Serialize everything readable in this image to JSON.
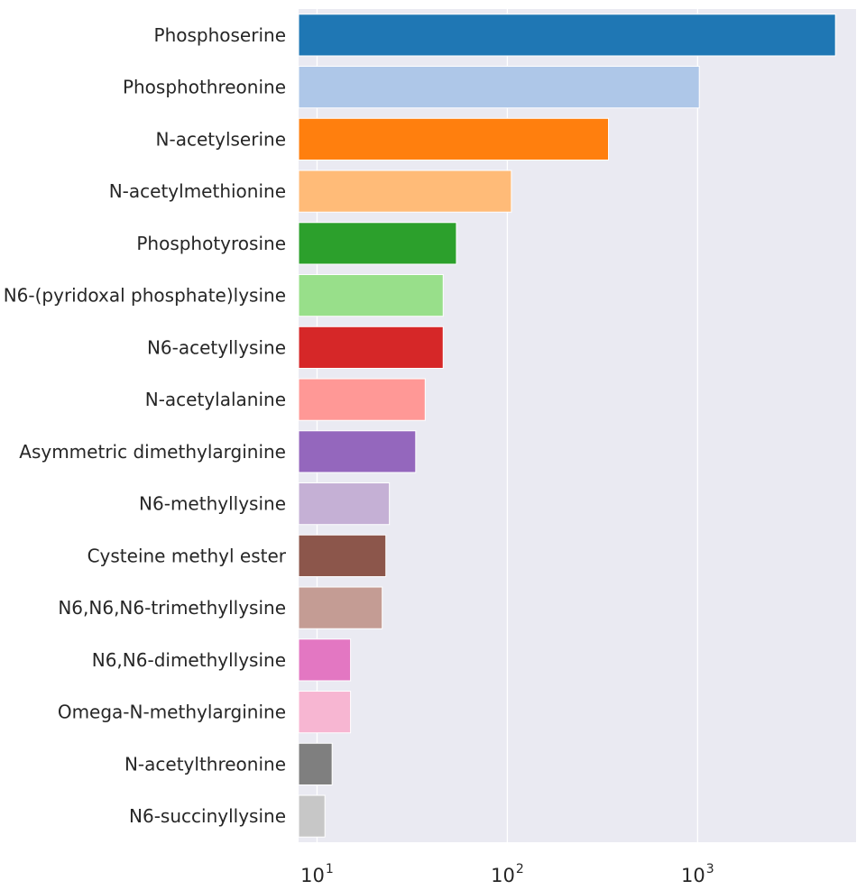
{
  "chart_data": {
    "type": "bar",
    "orientation": "horizontal",
    "title": "",
    "xlabel": "",
    "ylabel": "",
    "x_scale": "log",
    "xlim": [
      8,
      6800
    ],
    "grid": true,
    "background": "#eaeaf2",
    "categories": [
      "Phosphoserine",
      "Phosphothreonine",
      "N-acetylserine",
      "N-acetylmethionine",
      "Phosphotyrosine",
      "N6-(pyridoxal phosphate)lysine",
      "N6-acetyllysine",
      "N-acetylalanine",
      "Asymmetric dimethylarginine",
      "N6-methyllysine",
      "Cysteine methyl ester",
      "N6,N6,N6-trimethyllysine",
      "N6,N6-dimethyllysine",
      "Omega-N-methylarginine",
      "N-acetylthreonine",
      "N6-succinyllysine"
    ],
    "values": [
      5300,
      1020,
      340,
      105,
      54,
      46,
      46,
      37,
      33,
      24,
      23,
      22,
      15,
      15,
      12,
      11
    ],
    "colors": [
      "#1f77b4",
      "#aec7e8",
      "#ff7f0e",
      "#ffbb78",
      "#2ca02c",
      "#98df8a",
      "#d62728",
      "#ff9896",
      "#9467bd",
      "#c5b0d5",
      "#8c564b",
      "#c49c94",
      "#e377c2",
      "#f7b6d2",
      "#7f7f7f",
      "#c7c7c7"
    ],
    "x_ticks": [
      {
        "base": "10",
        "exp": "1",
        "value": 10
      },
      {
        "base": "10",
        "exp": "2",
        "value": 100
      },
      {
        "base": "10",
        "exp": "3",
        "value": 1000
      }
    ]
  }
}
